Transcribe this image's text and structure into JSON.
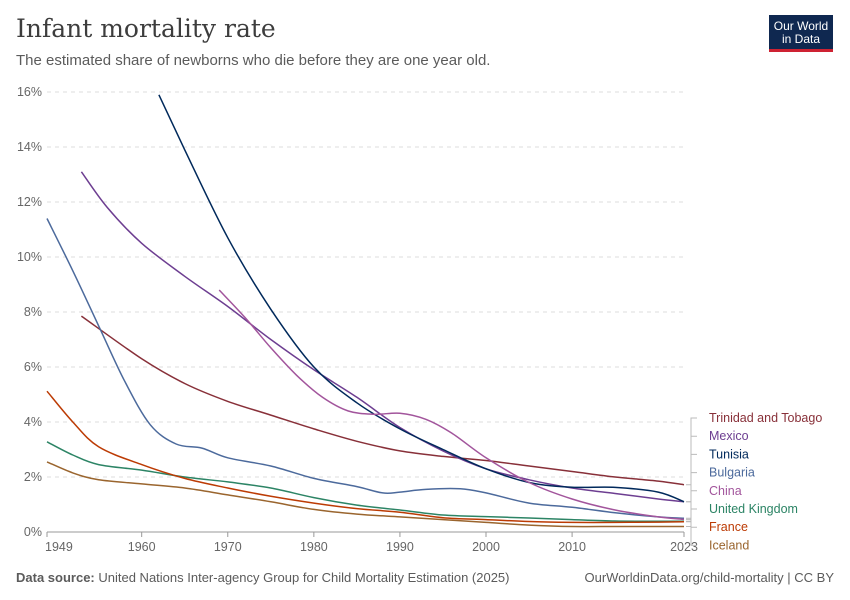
{
  "header": {
    "title": "Infant mortality rate",
    "subtitle": "The estimated share of newborns who die before they are one year old."
  },
  "logo": {
    "line1": "Our World",
    "line2": "in Data"
  },
  "footer": {
    "source_label": "Data source:",
    "source_text": " United Nations Inter-agency Group for Child Mortality Estimation (2025)",
    "link": "OurWorldinData.org/child-mortality | CC BY"
  },
  "chart_data": {
    "type": "line",
    "x_ticks": [
      1949,
      1960,
      1970,
      1980,
      1990,
      2000,
      2010,
      2023
    ],
    "y_ticks": [
      0,
      2,
      4,
      6,
      8,
      10,
      12,
      14,
      16
    ],
    "y_tick_labels": [
      "0%",
      "2%",
      "4%",
      "6%",
      "8%",
      "10%",
      "12%",
      "14%",
      "16%"
    ],
    "xlim": [
      1949,
      2023
    ],
    "ylim": [
      0,
      16
    ],
    "y_unit": "%",
    "grid": "horizontal dashed",
    "legend": "right, labels at line ends",
    "series": [
      {
        "name": "Trinidad and Tobago",
        "color": "#883039",
        "points": [
          [
            1953,
            7.85
          ],
          [
            1960,
            6.3
          ],
          [
            1965,
            5.4
          ],
          [
            1970,
            4.75
          ],
          [
            1975,
            4.25
          ],
          [
            1980,
            3.75
          ],
          [
            1985,
            3.3
          ],
          [
            1990,
            2.95
          ],
          [
            1995,
            2.75
          ],
          [
            2000,
            2.6
          ],
          [
            2005,
            2.4
          ],
          [
            2010,
            2.2
          ],
          [
            2015,
            2.0
          ],
          [
            2020,
            1.85
          ],
          [
            2023,
            1.72
          ]
        ]
      },
      {
        "name": "Mexico",
        "color": "#6d3e91",
        "points": [
          [
            1953,
            13.1
          ],
          [
            1956,
            11.8
          ],
          [
            1960,
            10.5
          ],
          [
            1965,
            9.3
          ],
          [
            1970,
            8.2
          ],
          [
            1975,
            7.0
          ],
          [
            1980,
            5.9
          ],
          [
            1985,
            4.9
          ],
          [
            1990,
            3.8
          ],
          [
            1995,
            2.95
          ],
          [
            2000,
            2.3
          ],
          [
            2005,
            1.9
          ],
          [
            2010,
            1.6
          ],
          [
            2015,
            1.4
          ],
          [
            2020,
            1.2
          ],
          [
            2023,
            1.1
          ]
        ]
      },
      {
        "name": "Tunisia",
        "color": "#00295b",
        "points": [
          [
            1962,
            15.9
          ],
          [
            1965,
            13.9
          ],
          [
            1970,
            10.7
          ],
          [
            1975,
            8.1
          ],
          [
            1980,
            6.0
          ],
          [
            1985,
            4.7
          ],
          [
            1990,
            3.75
          ],
          [
            1995,
            3.0
          ],
          [
            2000,
            2.3
          ],
          [
            2005,
            1.8
          ],
          [
            2010,
            1.63
          ],
          [
            2015,
            1.62
          ],
          [
            2020,
            1.45
          ],
          [
            2023,
            1.1
          ]
        ]
      },
      {
        "name": "Bulgaria",
        "color": "#4c6a9c",
        "points": [
          [
            1949,
            11.4
          ],
          [
            1952,
            9.5
          ],
          [
            1955,
            7.5
          ],
          [
            1958,
            5.5
          ],
          [
            1961,
            3.9
          ],
          [
            1964,
            3.2
          ],
          [
            1967,
            3.05
          ],
          [
            1970,
            2.7
          ],
          [
            1975,
            2.4
          ],
          [
            1980,
            1.95
          ],
          [
            1985,
            1.65
          ],
          [
            1988,
            1.42
          ],
          [
            1990,
            1.45
          ],
          [
            1993,
            1.55
          ],
          [
            1997,
            1.57
          ],
          [
            2000,
            1.42
          ],
          [
            2005,
            1.05
          ],
          [
            2010,
            0.9
          ],
          [
            2015,
            0.7
          ],
          [
            2020,
            0.55
          ],
          [
            2023,
            0.5
          ]
        ]
      },
      {
        "name": "China",
        "color": "#a2559c",
        "points": [
          [
            1969,
            8.8
          ],
          [
            1972,
            7.8
          ],
          [
            1975,
            6.7
          ],
          [
            1978,
            5.7
          ],
          [
            1981,
            4.9
          ],
          [
            1984,
            4.4
          ],
          [
            1987,
            4.28
          ],
          [
            1990,
            4.32
          ],
          [
            1993,
            4.1
          ],
          [
            1996,
            3.6
          ],
          [
            2000,
            2.7
          ],
          [
            2005,
            1.8
          ],
          [
            2010,
            1.2
          ],
          [
            2015,
            0.8
          ],
          [
            2020,
            0.55
          ],
          [
            2023,
            0.46
          ]
        ]
      },
      {
        "name": "United Kingdom",
        "color": "#2c8465",
        "points": [
          [
            1949,
            3.28
          ],
          [
            1952,
            2.8
          ],
          [
            1955,
            2.45
          ],
          [
            1960,
            2.25
          ],
          [
            1965,
            2.0
          ],
          [
            1970,
            1.82
          ],
          [
            1975,
            1.6
          ],
          [
            1980,
            1.25
          ],
          [
            1985,
            0.98
          ],
          [
            1990,
            0.8
          ],
          [
            1995,
            0.62
          ],
          [
            2000,
            0.56
          ],
          [
            2005,
            0.51
          ],
          [
            2010,
            0.45
          ],
          [
            2015,
            0.4
          ],
          [
            2020,
            0.39
          ],
          [
            2023,
            0.39
          ]
        ]
      },
      {
        "name": "France",
        "color": "#bc3b04",
        "points": [
          [
            1949,
            5.12
          ],
          [
            1952,
            4.0
          ],
          [
            1955,
            3.1
          ],
          [
            1960,
            2.45
          ],
          [
            1965,
            1.95
          ],
          [
            1970,
            1.6
          ],
          [
            1975,
            1.3
          ],
          [
            1980,
            1.05
          ],
          [
            1985,
            0.85
          ],
          [
            1990,
            0.72
          ],
          [
            1995,
            0.52
          ],
          [
            2000,
            0.45
          ],
          [
            2005,
            0.38
          ],
          [
            2010,
            0.35
          ],
          [
            2015,
            0.35
          ],
          [
            2020,
            0.36
          ],
          [
            2023,
            0.37
          ]
        ]
      },
      {
        "name": "Iceland",
        "color": "#9a652e",
        "points": [
          [
            1949,
            2.55
          ],
          [
            1952,
            2.15
          ],
          [
            1955,
            1.9
          ],
          [
            1960,
            1.75
          ],
          [
            1965,
            1.6
          ],
          [
            1970,
            1.35
          ],
          [
            1975,
            1.1
          ],
          [
            1980,
            0.82
          ],
          [
            1985,
            0.65
          ],
          [
            1990,
            0.55
          ],
          [
            1995,
            0.45
          ],
          [
            2000,
            0.35
          ],
          [
            2005,
            0.25
          ],
          [
            2010,
            0.2
          ],
          [
            2015,
            0.2
          ],
          [
            2020,
            0.2
          ],
          [
            2023,
            0.2
          ]
        ]
      }
    ]
  }
}
